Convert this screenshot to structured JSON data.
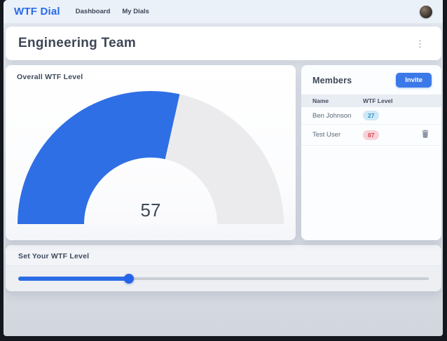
{
  "navbar": {
    "logo": "WTF Dial",
    "links": [
      {
        "label": "Dashboard"
      },
      {
        "label": "My Dials"
      }
    ]
  },
  "header": {
    "title": "Engineering Team",
    "kebab_glyph": "⋮"
  },
  "gauge_card": {
    "title": "Overall WTF Level",
    "value": 57
  },
  "chart_data": {
    "type": "gauge",
    "title": "Overall WTF Level",
    "value": 57,
    "range": [
      0,
      100
    ],
    "sweep_degrees": 180,
    "fill_color": "#2e6fe5",
    "track_color": "#ebebed"
  },
  "members": {
    "title": "Members",
    "invite_label": "Invite",
    "columns": [
      "Name",
      "WTF Level"
    ],
    "rows": [
      {
        "name": "Ben Johnson",
        "wtf_level": "27",
        "badge_style": "background:#cfe8f6;color:#2e8fc5;",
        "deletable": false
      },
      {
        "name": "Test User",
        "wtf_level": "87",
        "badge_style": "background:#f8d2d8;color:#d64350;",
        "deletable": true
      }
    ]
  },
  "slider_card": {
    "title": "Set Your WTF Level",
    "value": 27,
    "min": 0,
    "max": 100
  },
  "colors": {
    "accent": "#2e6fe5",
    "gauge_track": "#ebebed",
    "navbar_bg": "#ebf1f9",
    "danger": "#d64350",
    "info": "#2e8fc5"
  }
}
